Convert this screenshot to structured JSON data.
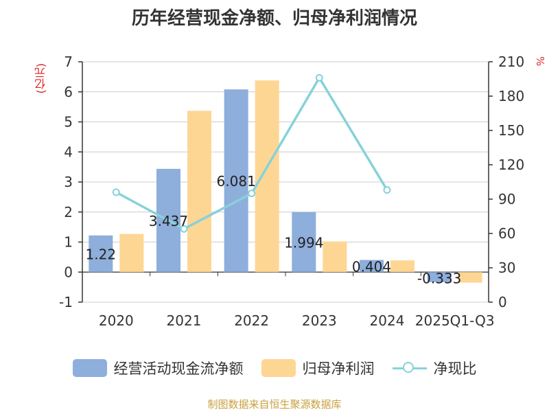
{
  "title": "历年经营现金净额、归母净利润情况",
  "source": "制图数据来自恒生聚源数据库",
  "colors": {
    "cash": "#8eaedb",
    "profit": "#fed694",
    "ratio": "#86d2da",
    "unit": "#e02020"
  },
  "chart_data": {
    "type": "bar",
    "categories": [
      "2020",
      "2021",
      "2022",
      "2023",
      "2024",
      "2025Q1-Q3"
    ],
    "left_axis": {
      "unit_label": "(亿元)",
      "ylim": [
        -1,
        7
      ],
      "ticks": [
        "-1",
        "0",
        "1",
        "2",
        "3",
        "4",
        "5",
        "6",
        "7"
      ]
    },
    "right_axis": {
      "unit_label": "%",
      "ylim": [
        0,
        210
      ],
      "ticks": [
        "0",
        "30",
        "60",
        "90",
        "120",
        "150",
        "180",
        "210"
      ]
    },
    "series": [
      {
        "name": "经营活动现金流净额",
        "type": "bar",
        "axis": "left",
        "values": [
          1.22,
          3.437,
          6.081,
          1.994,
          0.404,
          -0.333
        ],
        "labels": [
          "1.22",
          "3.437",
          "6.081",
          "1.994",
          "0.404",
          "-0.333"
        ]
      },
      {
        "name": "归母净利润",
        "type": "bar",
        "axis": "left",
        "values": [
          1.27,
          5.37,
          6.38,
          1.02,
          0.39,
          -0.35
        ]
      },
      {
        "name": "净现比",
        "type": "line",
        "axis": "right",
        "values": [
          96,
          64,
          95,
          196,
          98,
          null
        ]
      }
    ],
    "grid": true,
    "legend_position": "bottom"
  }
}
